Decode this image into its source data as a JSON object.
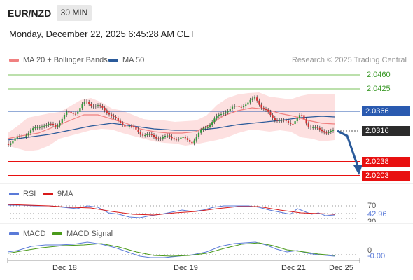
{
  "header": {
    "pair": "EUR/NZD",
    "timeframe": "30 MIN",
    "datetime": "Monday, December 22, 2025 6:45:28 AM CET"
  },
  "legend": {
    "ma20": "MA 20 + Bollinger Bands",
    "ma50": "MA 50",
    "credit": "Research © 2025 Trading Central"
  },
  "levels": {
    "r2": "2.0460",
    "r1": "2.0425",
    "pivot": "2.0366",
    "current": "2.0316",
    "s1": "2.0238",
    "s2": "2.0203"
  },
  "rsi": {
    "label": "RSI",
    "ma_label": "9MA",
    "level_70": "70",
    "value": "42.96",
    "level_30": "30"
  },
  "macd": {
    "label": "MACD",
    "signal_label": "MACD Signal",
    "zero": "0",
    "value": "-0.00"
  },
  "xaxis": {
    "labels": [
      "Dec 18",
      "Dec 19",
      "Dec 21",
      "Dec 25"
    ]
  },
  "colors": {
    "ma20": "#f08080",
    "ma50": "#2a5a9a",
    "band": "#fde0e0",
    "resistance": "#7ac25a",
    "pivot": "#2a5ab0",
    "support": "#e81010",
    "rsi": "#5a7ad8",
    "rsi_ma": "#d81a1a",
    "macd": "#5a7ad8",
    "macd_signal": "#4a9a1a",
    "bull": "#2f9a3a",
    "bear": "#d03030"
  },
  "chart_data": {
    "type": "candlestick",
    "y_levels": [
      2.046,
      2.0425,
      2.0366,
      2.0316,
      2.0238,
      2.0203
    ],
    "trend_arrow": "down"
  }
}
